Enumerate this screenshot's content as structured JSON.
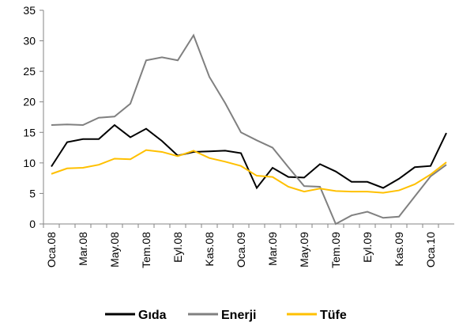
{
  "chart_data": {
    "type": "line",
    "categories": [
      "Oca.08",
      null,
      "Mar.08",
      null,
      "May.08",
      null,
      "Tem.08",
      null,
      "Eyl.08",
      null,
      "Kas.08",
      null,
      "Oca.09",
      null,
      "Mar.09",
      null,
      "May.09",
      null,
      "Tem.09",
      null,
      "Eyl.09",
      null,
      "Kas.09",
      null,
      "Oca.10",
      null
    ],
    "series": [
      {
        "name": "Gıda",
        "color": "#000000",
        "values": [
          9.4,
          13.4,
          13.9,
          13.9,
          16.2,
          14.2,
          15.6,
          13.6,
          11.2,
          11.8,
          11.9,
          12.0,
          11.6,
          5.9,
          9.2,
          7.7,
          7.6,
          9.8,
          8.6,
          6.9,
          6.9,
          5.9,
          7.4,
          9.3,
          9.5,
          14.9
        ]
      },
      {
        "name": "Enerji",
        "color": "#808080",
        "values": [
          16.2,
          16.3,
          16.2,
          17.4,
          17.6,
          19.7,
          26.8,
          27.3,
          26.8,
          30.9,
          24.1,
          19.8,
          15.0,
          13.7,
          12.5,
          9.3,
          6.2,
          6.1,
          0.0,
          1.4,
          2.0,
          1.0,
          1.2,
          4.5,
          7.8,
          9.7
        ]
      },
      {
        "name": "Tüfe",
        "color": "#ffc000",
        "values": [
          8.2,
          9.1,
          9.2,
          9.7,
          10.7,
          10.6,
          12.1,
          11.8,
          11.1,
          12.0,
          10.8,
          10.2,
          9.5,
          7.9,
          7.7,
          6.1,
          5.3,
          5.8,
          5.4,
          5.3,
          5.3,
          5.1,
          5.5,
          6.5,
          8.1,
          10.1
        ]
      }
    ],
    "ylim": [
      0,
      35
    ],
    "yticks": [
      0,
      5,
      10,
      15,
      20,
      25,
      30,
      35
    ],
    "grid": false,
    "legend": "bottom"
  }
}
